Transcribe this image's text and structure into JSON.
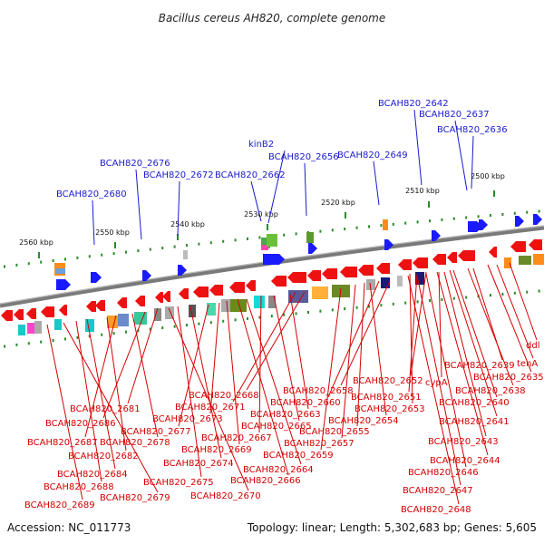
{
  "title": "Bacillus cereus AH820, complete genome",
  "footer": {
    "accession": "Accession: NC_011773",
    "summary": "Topology: linear; Length: 5,302,683 bp; Genes: 5,605"
  },
  "ticks": [
    "2500 kbp",
    "2510 kbp",
    "2520 kbp",
    "2530 kbp",
    "2540 kbp",
    "2550 kbp",
    "2560 kbp"
  ],
  "upper_labels": [
    "BCAH820_2642",
    "BCAH820_2637",
    "BCAH820_2636",
    "BCAH820_2649",
    "BCAH820_2656",
    "kinB2",
    "BCAH820_2662",
    "BCAH820_2672",
    "BCAH820_2676",
    "BCAH820_2680"
  ],
  "lower_labels": [
    "ddl",
    "tenA",
    "BCAH820_2635",
    "BCAH820_2639",
    "BCAH820_2638",
    "BCAH820_2640",
    "cypA",
    "BCAH820_2652",
    "BCAH820_2651",
    "BCAH820_2653",
    "BCAH820_2641",
    "BCAH820_2658",
    "BCAH820_2660",
    "BCAH820_2654",
    "BCAH820_2655",
    "BCAH820_2643",
    "BCAH820_2657",
    "BCAH820_2659",
    "BCAH820_2644",
    "BCAH820_2646",
    "BCAH820_2647",
    "BCAH820_2648",
    "BCAH820_2668",
    "BCAH820_2671",
    "BCAH820_2663",
    "BCAH820_2665",
    "BCAH820_2667",
    "BCAH820_2664",
    "BCAH820_2666",
    "BCAH820_2669",
    "BCAH820_2673",
    "BCAH820_2677",
    "BCAH820_2674",
    "BCAH820_2675",
    "BCAH820_2670",
    "BCAH820_2681",
    "BCAH820_2686",
    "BCAH820_2678",
    "BCAH820_2687",
    "BCAH820_2682",
    "BCAH820_2684",
    "BCAH820_2688",
    "BCAH820_2679",
    "BCAH820_2689"
  ],
  "colors": {
    "forward_gene": "#1a1aff",
    "reverse_gene": "#ee1111",
    "backbone": "#7a7a7a",
    "upper_label": "#1a1acc",
    "lower_label": "#d40000",
    "tick_mark": "#2a8a2a"
  }
}
